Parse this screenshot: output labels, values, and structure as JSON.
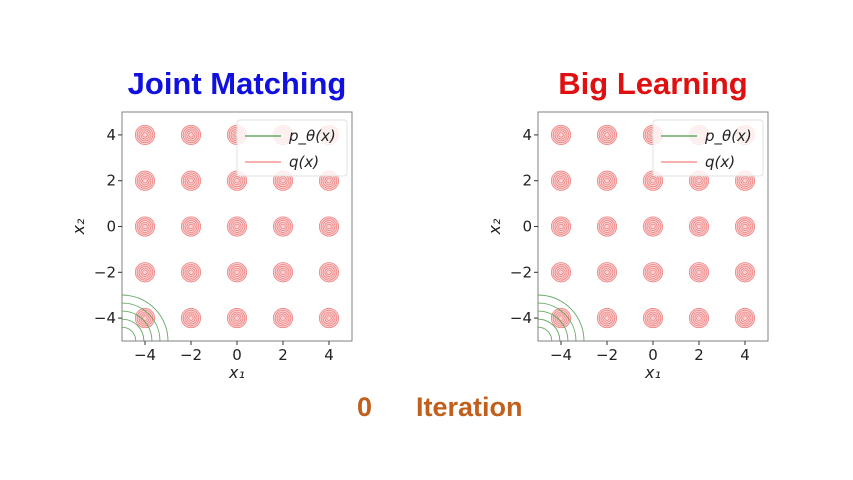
{
  "colors": {
    "left_title": "#1010e0",
    "right_title": "#e01010",
    "footer": "#c0601c",
    "p_theta": "#4a9a4a",
    "q": "#f08080",
    "q_fill": "#f5a0a0"
  },
  "footer": {
    "iteration_value": "0",
    "iteration_label": "Iteration"
  },
  "chart_data": [
    {
      "type": "contour",
      "title": "Joint Matching",
      "xlabel": "x₁",
      "ylabel": "x₂",
      "xlim": [
        -5,
        5
      ],
      "ylim": [
        -5,
        5
      ],
      "xticks": [
        "−4",
        "−2",
        "0",
        "2",
        "4"
      ],
      "yticks": [
        "−4",
        "−2",
        "0",
        "2",
        "4"
      ],
      "legend": {
        "placement": "top-right",
        "entries": [
          "p_θ(x)",
          "q(x)"
        ]
      },
      "series": [
        {
          "name": "q(x)",
          "kind": "gaussian-mixture",
          "centers_x": [
            -4,
            -2,
            0,
            2,
            4
          ],
          "centers_y": [
            -4,
            -2,
            0,
            2,
            4
          ]
        },
        {
          "name": "p_θ(x)",
          "kind": "contours",
          "center": [
            -5,
            -5
          ]
        }
      ]
    },
    {
      "type": "contour",
      "title": "Big Learning",
      "xlabel": "x₁",
      "ylabel": "x₂",
      "xlim": [
        -5,
        5
      ],
      "ylim": [
        -5,
        5
      ],
      "xticks": [
        "−4",
        "−2",
        "0",
        "2",
        "4"
      ],
      "yticks": [
        "−4",
        "−2",
        "0",
        "2",
        "4"
      ],
      "legend": {
        "placement": "top-right",
        "entries": [
          "p_θ(x)",
          "q(x)"
        ]
      },
      "series": [
        {
          "name": "q(x)",
          "kind": "gaussian-mixture",
          "centers_x": [
            -4,
            -2,
            0,
            2,
            4
          ],
          "centers_y": [
            -4,
            -2,
            0,
            2,
            4
          ]
        },
        {
          "name": "p_θ(x)",
          "kind": "contours",
          "center": [
            -5,
            -5
          ]
        }
      ]
    }
  ]
}
